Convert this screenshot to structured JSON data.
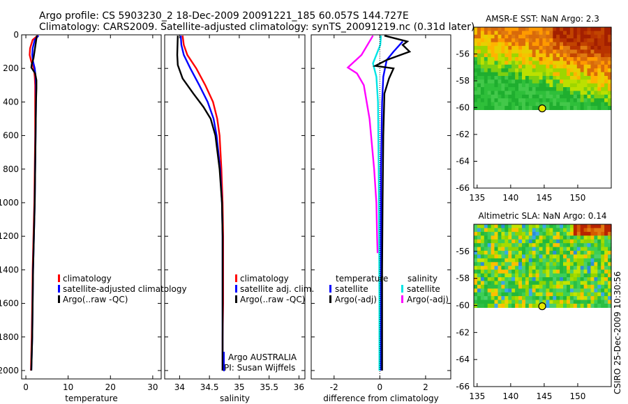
{
  "header": {
    "line1": "Argo profile: CS 5903230_2 18-Dec-2009 20091221_185 60.057S 144.727E",
    "line2": "Climatology: CARS2009. Satellite-adjusted climatology: synTS_20091219.nc (0.31d later)"
  },
  "footer_stamp": "CSIRO 25-Dec-2009 10:30:56",
  "chart_data": [
    {
      "id": "temperature",
      "type": "line",
      "xlabel": "temperature",
      "xlim": [
        -1,
        32
      ],
      "ylim": [
        2050,
        0
      ],
      "xticks": [
        "0",
        "10",
        "20",
        "30"
      ],
      "yticks": [
        "0",
        "200",
        "400",
        "600",
        "800",
        "1000",
        "1200",
        "1400",
        "1600",
        "1800",
        "2000"
      ],
      "legend": [
        "climatology",
        "satellite-adjusted climatology",
        "Argo(..raw -QC)"
      ],
      "series": [
        {
          "name": "climatology",
          "color": "#ff0000",
          "points": [
            [
              2.8,
              5
            ],
            [
              1.6,
              30
            ],
            [
              1.0,
              80
            ],
            [
              0.9,
              120
            ],
            [
              1.3,
              160
            ],
            [
              1.9,
              200
            ],
            [
              2.1,
              250
            ],
            [
              2.2,
              300
            ],
            [
              2.2,
              400
            ],
            [
              2.2,
              600
            ],
            [
              2.1,
              800
            ],
            [
              2.0,
              1000
            ],
            [
              1.8,
              1200
            ],
            [
              1.6,
              1400
            ],
            [
              1.5,
              1600
            ],
            [
              1.4,
              1800
            ],
            [
              1.2,
              2000
            ]
          ]
        },
        {
          "name": "satellite-adjusted climatology",
          "color": "#0000ff",
          "points": [
            [
              3.0,
              5
            ],
            [
              2.1,
              30
            ],
            [
              1.6,
              80
            ],
            [
              1.5,
              120
            ],
            [
              1.7,
              160
            ],
            [
              2.1,
              200
            ],
            [
              2.3,
              250
            ],
            [
              2.4,
              300
            ],
            [
              2.4,
              400
            ],
            [
              2.3,
              600
            ],
            [
              2.2,
              800
            ],
            [
              2.1,
              1000
            ],
            [
              1.9,
              1200
            ],
            [
              1.7,
              1400
            ],
            [
              1.6,
              1600
            ],
            [
              1.5,
              1800
            ],
            [
              1.3,
              2000
            ]
          ]
        },
        {
          "name": "Argo(..raw -QC)",
          "color": "#000000",
          "points": [
            [
              2.6,
              5
            ],
            [
              2.4,
              40
            ],
            [
              2.1,
              90
            ],
            [
              1.8,
              140
            ],
            [
              1.4,
              175
            ],
            [
              1.3,
              195
            ],
            [
              2.2,
              230
            ],
            [
              2.5,
              270
            ],
            [
              2.5,
              320
            ],
            [
              2.4,
              400
            ],
            [
              2.3,
              600
            ],
            [
              2.2,
              800
            ],
            [
              2.1,
              1000
            ],
            [
              1.9,
              1200
            ],
            [
              1.7,
              1400
            ],
            [
              1.6,
              1600
            ],
            [
              1.5,
              1800
            ],
            [
              1.3,
              2000
            ]
          ]
        }
      ]
    },
    {
      "id": "salinity",
      "type": "line",
      "xlabel": "salinity",
      "xlim": [
        33.75,
        36.1
      ],
      "ylim": [
        2050,
        0
      ],
      "xticks": [
        "34",
        "34.5",
        "35",
        "35.5",
        "36"
      ],
      "yticks": [],
      "legend": [
        "climatology",
        "satellite adj. clim.",
        "Argo(..raw -QC)"
      ],
      "annotation": [
        "Argo AUSTRALIA",
        "PI: Susan Wijffels"
      ],
      "series": [
        {
          "name": "climatology",
          "color": "#ff0000",
          "points": [
            [
              34.05,
              5
            ],
            [
              34.07,
              60
            ],
            [
              34.13,
              120
            ],
            [
              34.28,
              200
            ],
            [
              34.43,
              300
            ],
            [
              34.56,
              400
            ],
            [
              34.63,
              500
            ],
            [
              34.67,
              600
            ],
            [
              34.7,
              800
            ],
            [
              34.72,
              1000
            ],
            [
              34.73,
              1200
            ],
            [
              34.73,
              1400
            ],
            [
              34.73,
              1600
            ],
            [
              34.72,
              1800
            ],
            [
              34.72,
              2000
            ]
          ]
        },
        {
          "name": "satellite adj. clim.",
          "color": "#0000ff",
          "points": [
            [
              34.02,
              5
            ],
            [
              34.03,
              60
            ],
            [
              34.07,
              120
            ],
            [
              34.18,
              200
            ],
            [
              34.33,
              300
            ],
            [
              34.47,
              400
            ],
            [
              34.57,
              500
            ],
            [
              34.62,
              600
            ],
            [
              34.68,
              800
            ],
            [
              34.71,
              1000
            ],
            [
              34.72,
              1200
            ],
            [
              34.72,
              1400
            ],
            [
              34.72,
              1600
            ],
            [
              34.72,
              1800
            ],
            [
              34.72,
              2000
            ]
          ]
        },
        {
          "name": "Argo(..raw -QC)",
          "color": "#000000",
          "points": [
            [
              33.97,
              5
            ],
            [
              33.96,
              120
            ],
            [
              33.97,
              180
            ],
            [
              34.05,
              260
            ],
            [
              34.23,
              350
            ],
            [
              34.4,
              430
            ],
            [
              34.52,
              500
            ],
            [
              34.6,
              600
            ],
            [
              34.67,
              800
            ],
            [
              34.71,
              1000
            ],
            [
              34.72,
              1200
            ],
            [
              34.72,
              1400
            ],
            [
              34.72,
              1600
            ],
            [
              34.72,
              1800
            ],
            [
              34.72,
              2000
            ]
          ]
        }
      ]
    },
    {
      "id": "difference",
      "type": "line",
      "xlabel": "difference from climatology",
      "xlim": [
        -3.0,
        3.1
      ],
      "ylim": [
        2050,
        0
      ],
      "xticks": [
        "-2",
        "0",
        "2"
      ],
      "yticks": [],
      "legend_groups": [
        {
          "title": "temperature",
          "entries": [
            "satellite",
            "Argo(-adj)"
          ]
        },
        {
          "title": "salinity",
          "entries": [
            "satellite",
            "Argo(-adj)"
          ]
        }
      ],
      "series": [
        {
          "name": "temperature satellite",
          "color": "#0000ff",
          "points": [
            [
              1.0,
              40
            ],
            [
              0.6,
              100
            ],
            [
              0.3,
              150
            ],
            [
              0.15,
              250
            ],
            [
              0.1,
              400
            ],
            [
              0.05,
              800
            ],
            [
              0.05,
              1200
            ],
            [
              0.05,
              1600
            ],
            [
              0.03,
              2000
            ]
          ]
        },
        {
          "name": "salinity satellite",
          "color": "#00e5e5",
          "points": [
            [
              0.05,
              5
            ],
            [
              0.02,
              60
            ],
            [
              -0.3,
              170
            ],
            [
              -0.15,
              250
            ],
            [
              -0.08,
              400
            ],
            [
              -0.05,
              800
            ],
            [
              -0.03,
              1200
            ],
            [
              -0.02,
              1600
            ],
            [
              -0.02,
              2000
            ]
          ]
        },
        {
          "name": "temperature Argo(-adj)",
          "color": "#000000",
          "points": [
            [
              0.2,
              5
            ],
            [
              1.2,
              40
            ],
            [
              1.0,
              60
            ],
            [
              1.3,
              100
            ],
            [
              0.3,
              150
            ],
            [
              -0.2,
              185
            ],
            [
              0.6,
              200
            ],
            [
              0.4,
              260
            ],
            [
              0.2,
              350
            ],
            [
              0.15,
              600
            ],
            [
              0.12,
              1000
            ],
            [
              0.1,
              1400
            ],
            [
              0.1,
              1800
            ],
            [
              0.1,
              2000
            ]
          ]
        },
        {
          "name": "salinity Argo(-adj)",
          "color": "#ff00ff",
          "points": [
            [
              -0.3,
              5
            ],
            [
              -0.8,
              120
            ],
            [
              -1.4,
              195
            ],
            [
              -1.0,
              230
            ],
            [
              -0.7,
              300
            ],
            [
              -0.45,
              500
            ],
            [
              -0.25,
              800
            ],
            [
              -0.15,
              1000
            ],
            [
              -0.12,
              1200
            ],
            [
              -0.1,
              1300
            ]
          ]
        }
      ]
    },
    {
      "id": "sst-map",
      "type": "heatmap",
      "title": "AMSR-E SST: NaN Argo: 2.3",
      "xlim": [
        134.5,
        155
      ],
      "ylim": [
        -66,
        -54
      ],
      "xticks": [
        "135",
        "140",
        "145",
        "150"
      ],
      "yticks": [
        "-56",
        "-58",
        "-60",
        "-62",
        "-64",
        "-66"
      ],
      "argo_position": [
        144.7,
        -60.06
      ]
    },
    {
      "id": "sla-map",
      "type": "heatmap",
      "title": "Altimetric SLA: NaN Argo: 0.14",
      "xlim": [
        134.5,
        155
      ],
      "ylim": [
        -66,
        -54
      ],
      "xticks": [
        "135",
        "140",
        "145",
        "150"
      ],
      "yticks": [
        "-56",
        "-58",
        "-60",
        "-62",
        "-64",
        "-66"
      ],
      "argo_position": [
        144.7,
        -60.06
      ]
    }
  ]
}
